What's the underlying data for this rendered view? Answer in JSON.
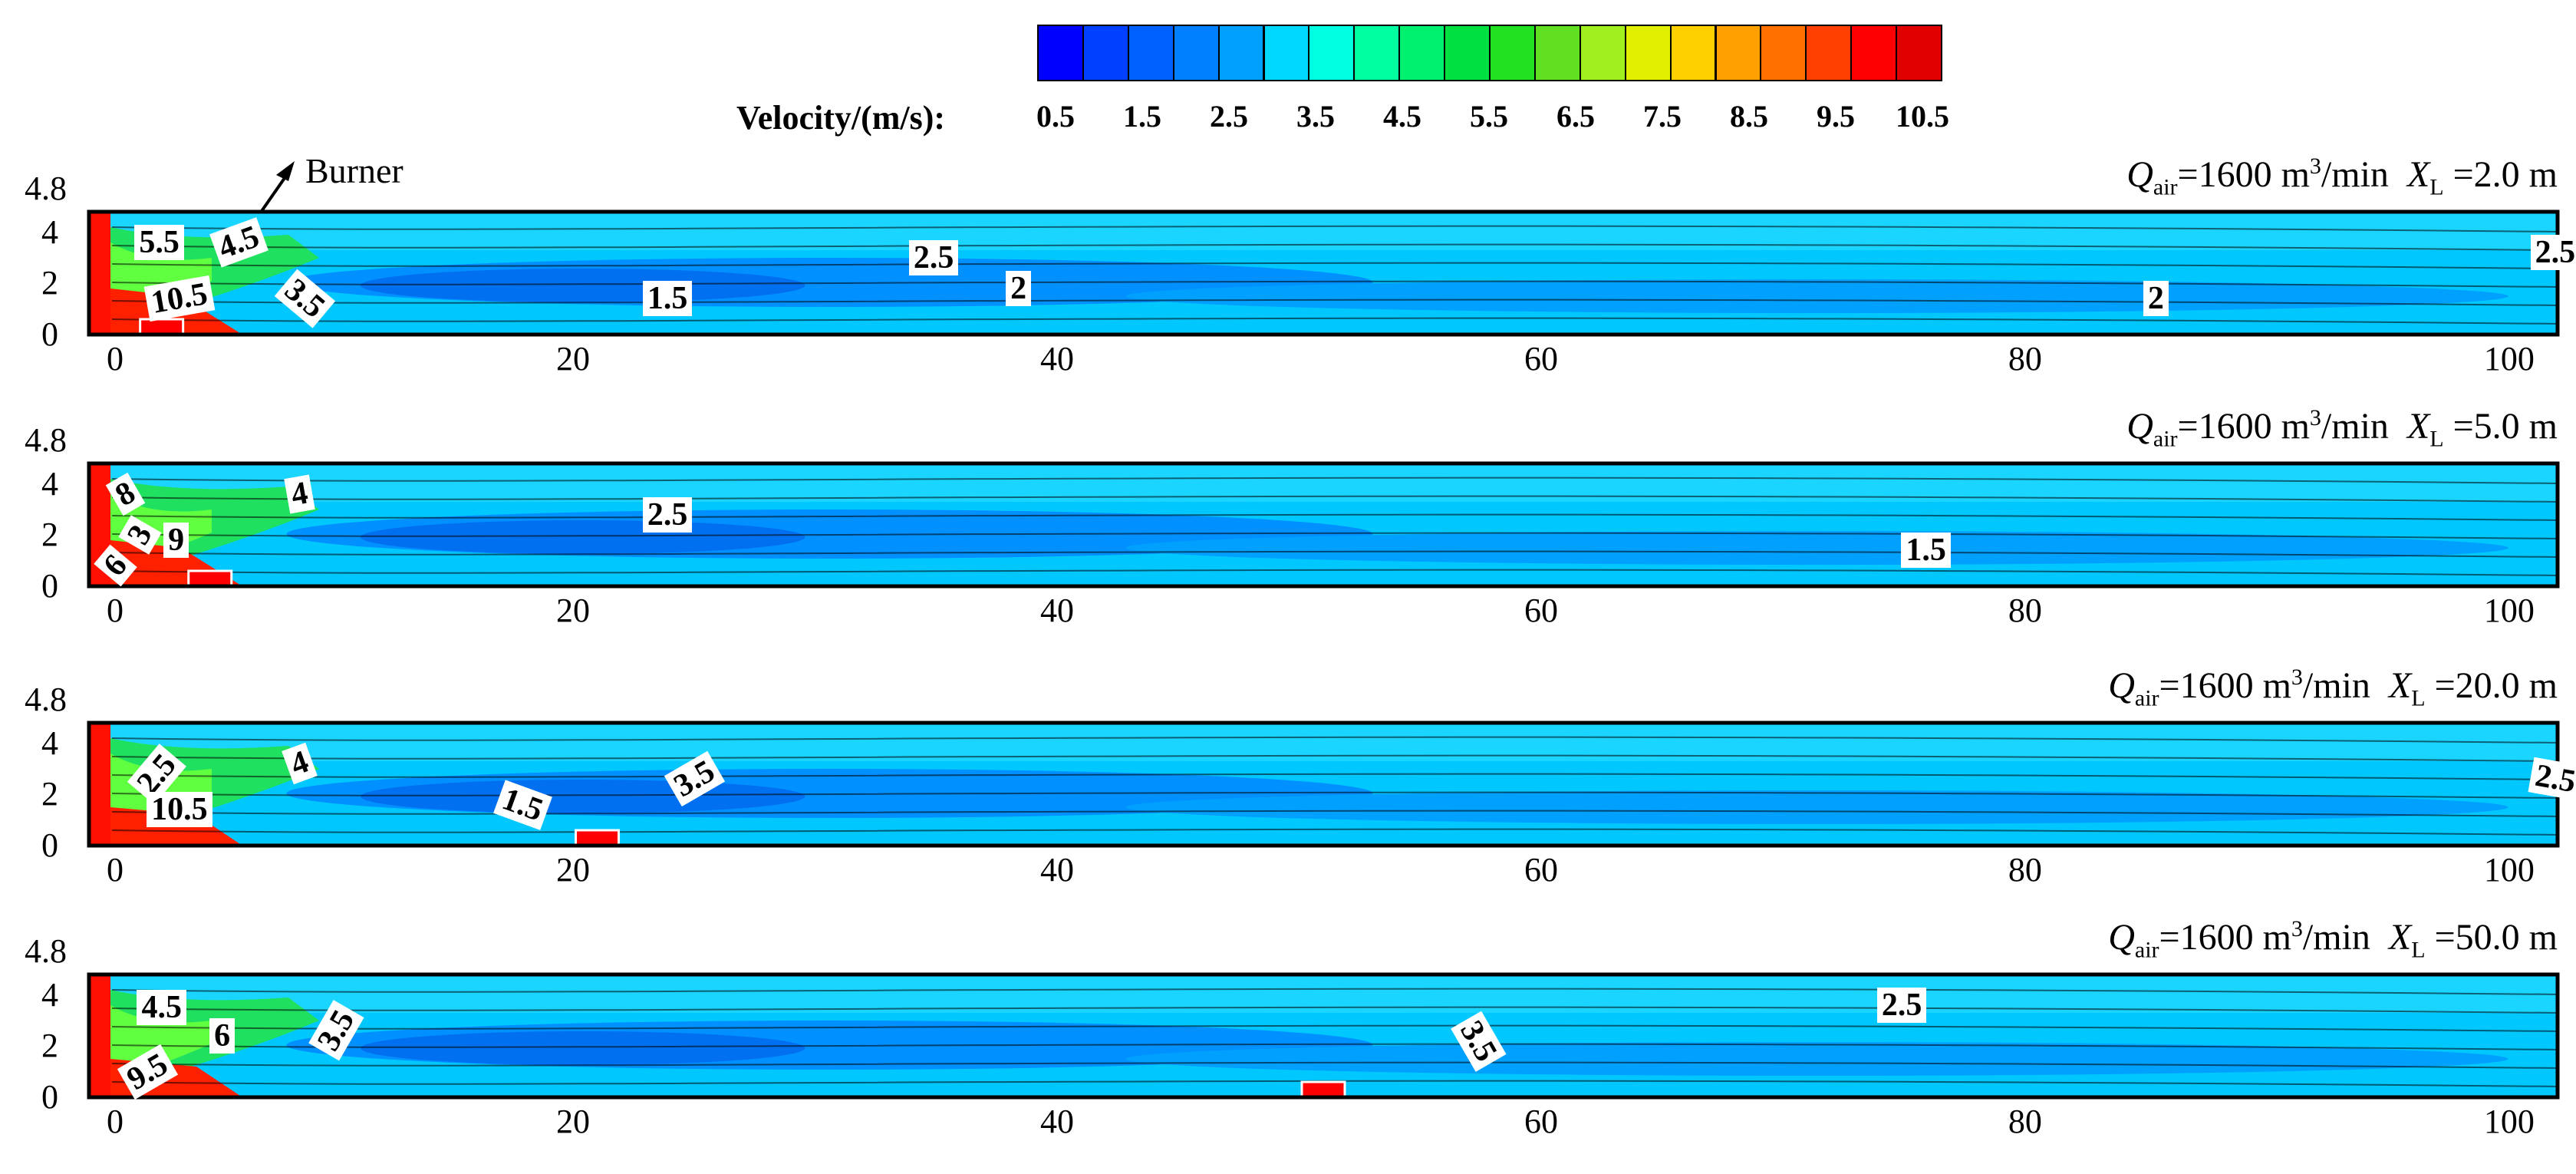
{
  "colorbar": {
    "title": "Velocity/(m/s):",
    "colors": [
      "#0000ff",
      "#0040ff",
      "#0060ff",
      "#0080ff",
      "#00a0ff",
      "#00d8ff",
      "#00ffe0",
      "#00ffa0",
      "#00f070",
      "#00e040",
      "#20e020",
      "#60e020",
      "#a0f020",
      "#e0f000",
      "#ffd000",
      "#ffa000",
      "#ff7000",
      "#ff4000",
      "#ff0000",
      "#e00000"
    ],
    "tick_labels": [
      "0.5",
      "1.5",
      "2.5",
      "3.5",
      "4.5",
      "5.5",
      "6.5",
      "7.5",
      "8.5",
      "9.5",
      "10.5"
    ]
  },
  "burner_label": "Burner",
  "chart_data": [
    {
      "type": "heatmap",
      "title": "Q_air=1600 m3/min  X_L =2.0 m",
      "condition": {
        "q_sub": "air",
        "q_value": "=1600 m",
        "q_exp": "3",
        "q_unit": "/min",
        "xl_sub": "L",
        "xl_value": " =2.0 m"
      },
      "burner_x": 3,
      "y_tick_labels": [
        "4.8",
        "4",
        "2",
        "0"
      ],
      "x_tick_labels": [
        "0",
        "20",
        "40",
        "60",
        "80",
        "100"
      ],
      "xlim": [
        0,
        102
      ],
      "ylim": [
        0,
        4.8
      ],
      "contour_labels": [
        {
          "text": "5.5",
          "x": 1.5,
          "y": 3.6,
          "rot": 0
        },
        {
          "text": "4.5",
          "x": 4.8,
          "y": 3.6,
          "rot": -20
        },
        {
          "text": "10.5",
          "x": 2.0,
          "y": 1.4,
          "rot": -10
        },
        {
          "text": "3.5",
          "x": 7.5,
          "y": 1.4,
          "rot": 40
        },
        {
          "text": "2.5",
          "x": 33.5,
          "y": 3.0,
          "rot": 0
        },
        {
          "text": "1.5",
          "x": 22.5,
          "y": 1.4,
          "rot": 0
        },
        {
          "text": "2",
          "x": 37.5,
          "y": 1.8,
          "rot": 0
        },
        {
          "text": "2",
          "x": 84.5,
          "y": 1.4,
          "rot": 0
        },
        {
          "text": "2.5",
          "x": 100.5,
          "y": 3.2,
          "rot": 0
        }
      ]
    },
    {
      "type": "heatmap",
      "title": "Q_air=1600 m3/min  X_L =5.0 m",
      "condition": {
        "q_sub": "air",
        "q_value": "=1600 m",
        "q_exp": "3",
        "q_unit": "/min",
        "xl_sub": "L",
        "xl_value": " =5.0 m"
      },
      "burner_x": 5,
      "y_tick_labels": [
        "4.8",
        "4",
        "2",
        "0"
      ],
      "x_tick_labels": [
        "0",
        "20",
        "40",
        "60",
        "80",
        "100"
      ],
      "xlim": [
        0,
        102
      ],
      "ylim": [
        0,
        4.8
      ],
      "contour_labels": [
        {
          "text": "8",
          "x": 0.6,
          "y": 3.6,
          "rot": -30
        },
        {
          "text": "3",
          "x": 1.2,
          "y": 2.0,
          "rot": -60
        },
        {
          "text": "9",
          "x": 2.7,
          "y": 1.8,
          "rot": 0
        },
        {
          "text": "6",
          "x": 0.2,
          "y": 0.8,
          "rot": -50
        },
        {
          "text": "4",
          "x": 7.8,
          "y": 3.6,
          "rot": -10
        },
        {
          "text": "2.5",
          "x": 22.5,
          "y": 2.8,
          "rot": 0
        },
        {
          "text": "1.5",
          "x": 74.5,
          "y": 1.4,
          "rot": 0
        }
      ]
    },
    {
      "type": "heatmap",
      "title": "Q_air=1600 m3/min  X_L =20.0 m",
      "condition": {
        "q_sub": "air",
        "q_value": "=1600 m",
        "q_exp": "3",
        "q_unit": "/min",
        "xl_sub": "L",
        "xl_value": " =20.0 m"
      },
      "burner_x": 21,
      "y_tick_labels": [
        "4.8",
        "4",
        "2",
        "0"
      ],
      "x_tick_labels": [
        "0",
        "20",
        "40",
        "60",
        "80",
        "100"
      ],
      "xlim": [
        0,
        102
      ],
      "ylim": [
        0,
        4.8
      ],
      "contour_labels": [
        {
          "text": "2.5",
          "x": 1.4,
          "y": 2.8,
          "rot": -50
        },
        {
          "text": "4",
          "x": 7.8,
          "y": 3.2,
          "rot": -20
        },
        {
          "text": "10.5",
          "x": 2.0,
          "y": 1.4,
          "rot": 0
        },
        {
          "text": "1.5",
          "x": 16.5,
          "y": 1.6,
          "rot": 20
        },
        {
          "text": "3.5",
          "x": 23.6,
          "y": 2.6,
          "rot": -30
        },
        {
          "text": "2.5",
          "x": 100.5,
          "y": 2.6,
          "rot": 10
        }
      ]
    },
    {
      "type": "heatmap",
      "title": "Q_air=1600 m3/min  X_L =50.0 m",
      "condition": {
        "q_sub": "air",
        "q_value": "=1600 m",
        "q_exp": "3",
        "q_unit": "/min",
        "xl_sub": "L",
        "xl_value": " =50.0 m"
      },
      "burner_x": 51,
      "y_tick_labels": [
        "4.8",
        "4",
        "2",
        "0"
      ],
      "x_tick_labels": [
        "0",
        "20",
        "40",
        "60",
        "80",
        "100"
      ],
      "xlim": [
        0,
        102
      ],
      "ylim": [
        0,
        4.8
      ],
      "contour_labels": [
        {
          "text": "4.5",
          "x": 1.6,
          "y": 3.5,
          "rot": 0
        },
        {
          "text": "6",
          "x": 4.6,
          "y": 2.4,
          "rot": 0
        },
        {
          "text": "3.5",
          "x": 8.8,
          "y": 2.6,
          "rot": -60
        },
        {
          "text": "9.5",
          "x": 1.0,
          "y": 1.0,
          "rot": -30
        },
        {
          "text": "3.5",
          "x": 56.0,
          "y": 2.2,
          "rot": 60
        },
        {
          "text": "2.5",
          "x": 73.5,
          "y": 3.6,
          "rot": 0
        }
      ]
    }
  ]
}
